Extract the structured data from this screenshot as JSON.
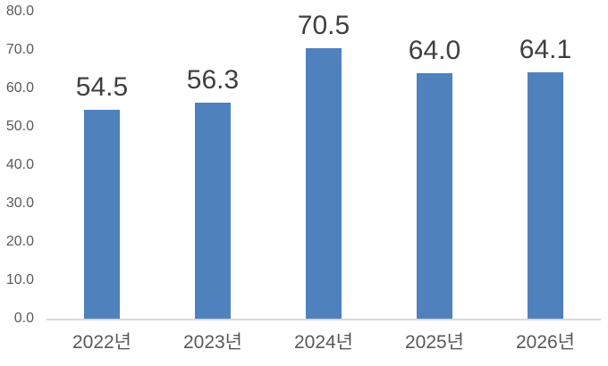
{
  "chart_data": {
    "type": "bar",
    "title": "",
    "xlabel": "",
    "ylabel": "",
    "categories": [
      "2022년",
      "2023년",
      "2024년",
      "2025년",
      "2026년"
    ],
    "values": [
      54.5,
      56.3,
      70.5,
      64.0,
      64.1
    ],
    "data_labels": [
      "54.5",
      "56.3",
      "70.5",
      "64.0",
      "64.1"
    ],
    "y_ticks": [
      "0.0",
      "10.0",
      "20.0",
      "30.0",
      "40.0",
      "50.0",
      "60.0",
      "70.0",
      "80.0"
    ],
    "ylim": [
      0,
      80
    ],
    "y_tick_step": 10,
    "grid": false,
    "legend": "none",
    "colors": {
      "bar": "#4f81bd",
      "axis_line": "#d9d9d9",
      "tick_label": "#595959",
      "data_label": "#3f3f3f",
      "background": "#ffffff"
    }
  }
}
